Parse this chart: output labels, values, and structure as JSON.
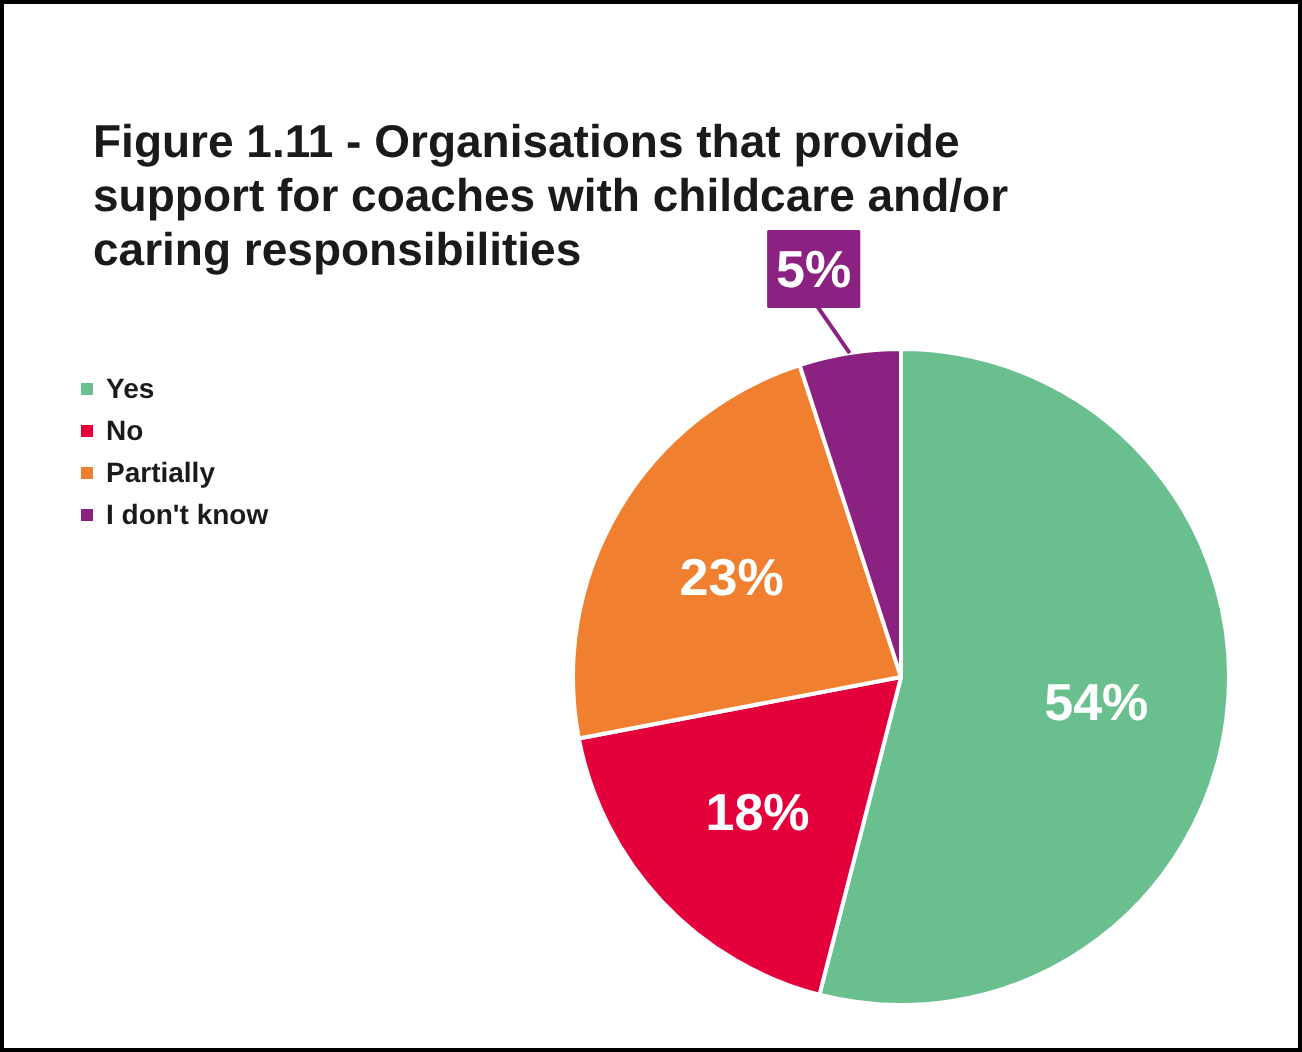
{
  "chart_data": {
    "type": "pie",
    "title": "Figure 1.11 - Organisations that provide support for coaches with childcare and/or caring responsibilities",
    "categories": [
      "Yes",
      "No",
      "Partially",
      "I don't know"
    ],
    "values": [
      54,
      18,
      23,
      5
    ],
    "colors": [
      "#6abf8f",
      "#e4003b",
      "#f08030",
      "#8b2281"
    ],
    "value_labels": [
      "54%",
      "18%",
      "23%",
      "5%"
    ],
    "legend": "top left"
  }
}
